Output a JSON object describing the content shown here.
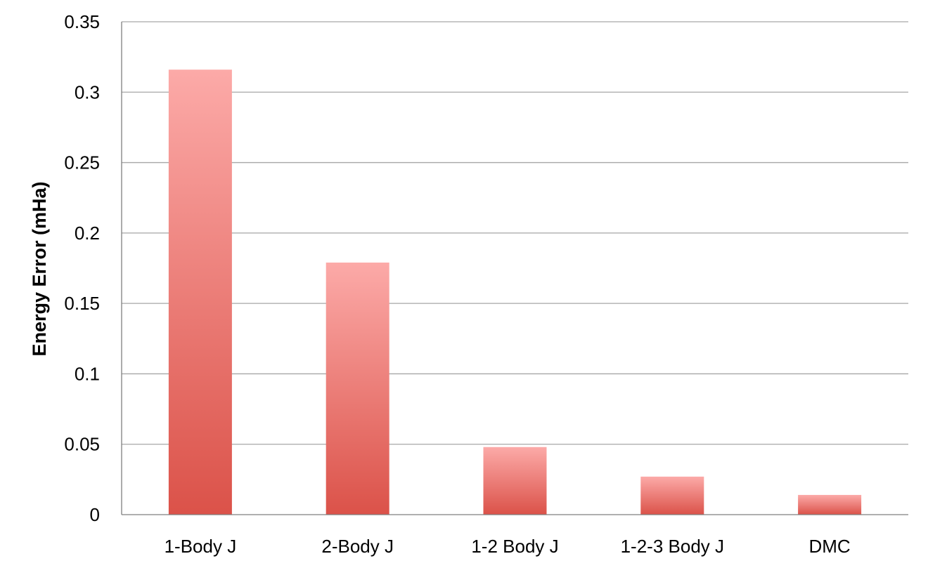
{
  "chart_data": {
    "type": "bar",
    "title": "",
    "xlabel": "",
    "ylabel": "Energy Error  (mHa)",
    "categories": [
      "1-Body J",
      "2-Body J",
      "1-2 Body J",
      "1-2-3 Body J",
      "DMC"
    ],
    "values": [
      0.316,
      0.179,
      0.048,
      0.027,
      0.014
    ],
    "ylim": [
      0,
      0.35
    ],
    "yticks": [
      0,
      0.05,
      0.1,
      0.15,
      0.2,
      0.25,
      0.3,
      0.35
    ],
    "ytick_labels": [
      "0",
      "0.05",
      "0.1",
      "0.15",
      "0.2",
      "0.25",
      "0.3",
      "0.35"
    ],
    "grid": true,
    "legend": "none",
    "colors": {
      "bar_top": "#fcaaa8",
      "bar_bottom": "#db5249",
      "grid": "#a6a6a6",
      "axis": "#7f7f7f"
    }
  }
}
